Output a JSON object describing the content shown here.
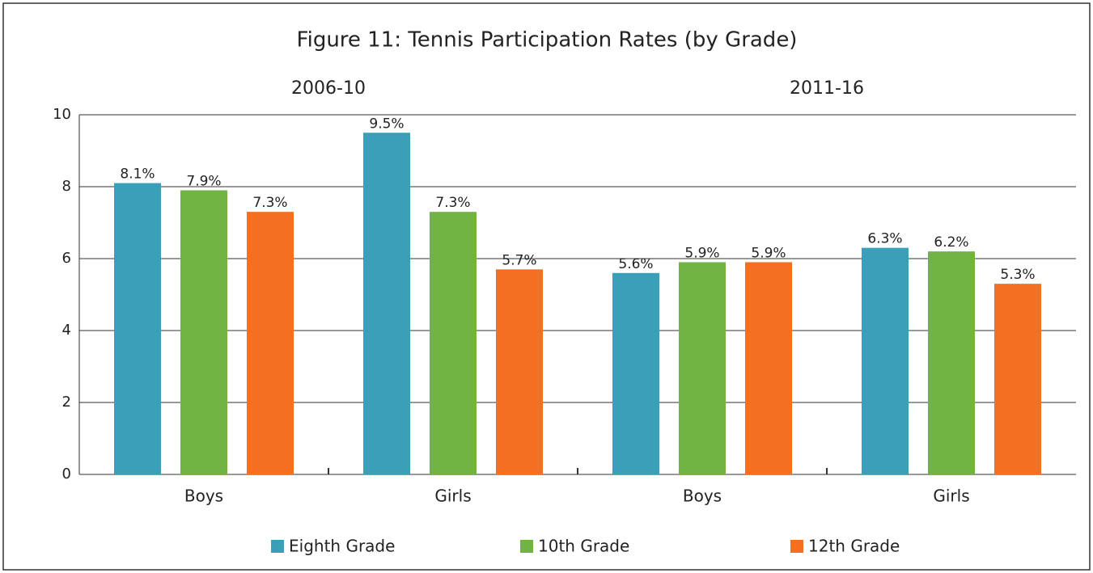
{
  "chart_data": {
    "type": "bar",
    "title": "Figure 11: Tennis Participation Rates (by Grade)",
    "groups": [
      "2006-10",
      "2011-16"
    ],
    "categories": [
      "Boys",
      "Girls",
      "Boys",
      "Girls"
    ],
    "series": [
      {
        "name": "Eighth Grade",
        "color": "#3a9fb8",
        "values": [
          8.1,
          9.5,
          5.6,
          6.3
        ],
        "value_labels": [
          "8.1%",
          "9.5%",
          "5.6%",
          "6.3%"
        ]
      },
      {
        "name": "10th Grade",
        "color": "#72b443",
        "values": [
          7.9,
          7.3,
          5.9,
          6.2
        ],
        "value_labels": [
          "7.9%",
          "7.3%",
          "5.9%",
          "6.2%"
        ]
      },
      {
        "name": "12th Grade",
        "color": "#f36f21",
        "values": [
          7.3,
          5.7,
          5.9,
          5.3
        ],
        "value_labels": [
          "7.3%",
          "5.7%",
          "5.9%",
          "5.3%"
        ]
      }
    ],
    "ylim": [
      0,
      10
    ],
    "yticks": [
      0,
      2,
      4,
      6,
      8,
      10
    ],
    "grid": true,
    "legend": "bottom"
  }
}
